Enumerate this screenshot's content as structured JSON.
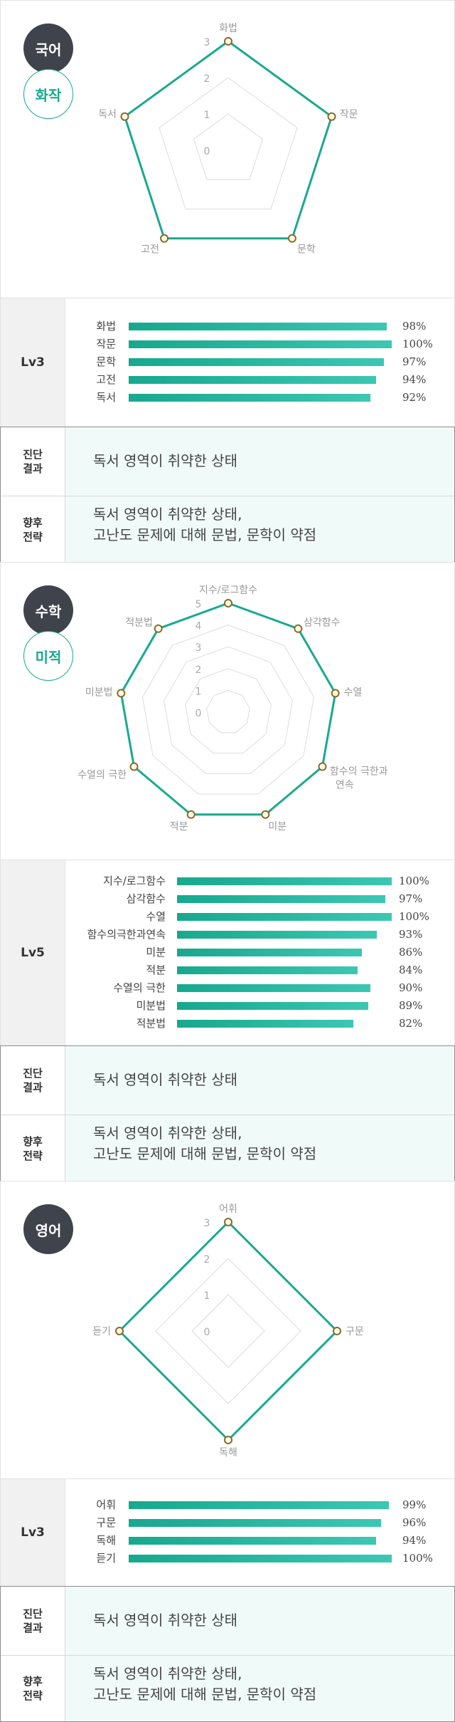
{
  "colors": {
    "accent": "#19a98f",
    "dark_badge": "#3f434b",
    "tinted_bg": "#f0fbf9"
  },
  "sections": [
    {
      "subject": "국어",
      "course": "화작",
      "radar": {
        "axes": [
          "화법",
          "작문",
          "문학",
          "고전",
          "독서"
        ],
        "scale_max": 3,
        "scale_ticks": [
          "0",
          "1",
          "2",
          "3"
        ],
        "values": [
          3,
          3,
          3,
          3,
          3
        ]
      },
      "level": "Lv3",
      "bars": [
        {
          "label": "화법",
          "percent": 98,
          "text": "98%"
        },
        {
          "label": "작문",
          "percent": 100,
          "text": "100%"
        },
        {
          "label": "문학",
          "percent": 97,
          "text": "97%"
        },
        {
          "label": "고전",
          "percent": 94,
          "text": "94%"
        },
        {
          "label": "독서",
          "percent": 92,
          "text": "92%"
        }
      ],
      "result_label": "진단\n결과",
      "result_text": "독서 영역이 취약한 상태",
      "strategy_label": "향후\n전략",
      "strategy_text": "독서 영역이 취약한 상태,\n고난도 문제에 대해 문법, 문학이 약점"
    },
    {
      "subject": "수학",
      "course": "미적",
      "radar": {
        "axes": [
          "지수/로그함수",
          "삼각함수",
          "수열",
          "함수의 극한과\n연속",
          "미분",
          "적분",
          "수열의 극한",
          "미분법",
          "적분법"
        ],
        "scale_max": 5,
        "scale_ticks": [
          "0",
          "1",
          "2",
          "3",
          "4",
          "5"
        ],
        "values": [
          5,
          5,
          5,
          5,
          5,
          5,
          5,
          5,
          5
        ]
      },
      "level": "Lv5",
      "bars": [
        {
          "label": "지수/로그함수",
          "percent": 100,
          "text": "100%"
        },
        {
          "label": "삼각함수",
          "percent": 97,
          "text": "97%"
        },
        {
          "label": "수열",
          "percent": 100,
          "text": "100%"
        },
        {
          "label": "함수의극한과연속",
          "percent": 93,
          "text": "93%"
        },
        {
          "label": "미분",
          "percent": 86,
          "text": "86%"
        },
        {
          "label": "적분",
          "percent": 84,
          "text": "84%"
        },
        {
          "label": "수열의 극한",
          "percent": 90,
          "text": "90%"
        },
        {
          "label": "미분법",
          "percent": 89,
          "text": "89%"
        },
        {
          "label": "적분법",
          "percent": 82,
          "text": "82%"
        }
      ],
      "result_label": "진단\n결과",
      "result_text": "독서 영역이 취약한 상태",
      "strategy_label": "향후\n전략",
      "strategy_text": "독서 영역이 취약한 상태,\n고난도 문제에 대해 문법, 문학이 약점"
    },
    {
      "subject": "영어",
      "course": "",
      "radar": {
        "axes": [
          "어휘",
          "구문",
          "독해",
          "듣기"
        ],
        "scale_max": 3,
        "scale_ticks": [
          "0",
          "1",
          "2",
          "3"
        ],
        "values": [
          3,
          3,
          3,
          3
        ]
      },
      "level": "Lv3",
      "bars": [
        {
          "label": "어휘",
          "percent": 99,
          "text": "99%"
        },
        {
          "label": "구문",
          "percent": 96,
          "text": "96%"
        },
        {
          "label": "독해",
          "percent": 94,
          "text": "94%"
        },
        {
          "label": "듣기",
          "percent": 100,
          "text": "100%"
        }
      ],
      "result_label": "진단\n결과",
      "result_text": "독서 영역이 취약한 상태",
      "strategy_label": "향후\n전략",
      "strategy_text": "독서 영역이 취약한 상태,\n고난도 문제에 대해 문법, 문학이 약점"
    }
  ]
}
